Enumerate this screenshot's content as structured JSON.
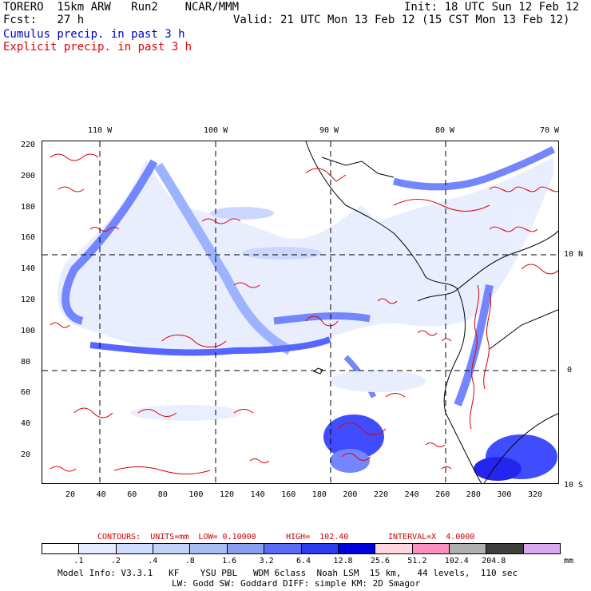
{
  "header": {
    "line1_left": "TORERO  15km ARW   Run2    NCAR/MMM",
    "line1_right": "Init: 18 UTC Sun 12 Feb 12",
    "line2_left": "Fcst:   27 h",
    "line2_right": "Valid: 21 UTC Mon 13 Feb 12 (15 CST Mon 13 Feb 12)",
    "legend_blue": "Cumulus precip. in past 3 h",
    "legend_red": "Explicit precip. in past 3 h"
  },
  "map": {
    "top_lon_labels": [
      "110 W",
      "100 W",
      "90 W",
      "80 W",
      "70 W"
    ],
    "right_lat_labels": [
      "10 N",
      "0",
      "10 S"
    ],
    "y_ticks": [
      "220",
      "200",
      "180",
      "160",
      "140",
      "120",
      "100",
      "80",
      "60",
      "40",
      "20"
    ],
    "x_ticks": [
      "20",
      "40",
      "60",
      "80",
      "100",
      "120",
      "140",
      "160",
      "180",
      "200",
      "220",
      "240",
      "260",
      "280",
      "300",
      "320"
    ],
    "contour_color": "#dd0000",
    "fill_colors": [
      "#e6ecff",
      "#c3d1ff",
      "#8ea6ff",
      "#5b72ff",
      "#1f2fff",
      "#0000ee"
    ]
  },
  "contours_line": {
    "units": "CONTOURS:  UNITS=mm  LOW= 0.10000",
    "high": "HIGH=  102.40",
    "interval": "INTERVAL=X  4.0000"
  },
  "colorbar": {
    "colors": [
      "#ffffff",
      "#e6ecff",
      "#d0dcff",
      "#c2d2f8",
      "#a9bdf5",
      "#8a9ef0",
      "#5a6bf5",
      "#2e3cf0",
      "#0000dd",
      "#ffd6e0",
      "#ff8fc0",
      "#b0b0b0",
      "#404040",
      "#d8a8f0"
    ],
    "labels": [
      ".1",
      ".2",
      ".4",
      ".8",
      "1.6",
      "3.2",
      "6.4",
      "12.8",
      "25.6",
      "51.2",
      "102.4",
      "204.8"
    ],
    "units": "mm"
  },
  "footer": {
    "line1": "Model Info: V3.3.1   KF    YSU PBL   WDM 6class  Noah LSM  15 km,   44 levels,  110 sec",
    "line2": "LW: Godd SW: Goddard DIFF: simple KM: 2D Smagor"
  }
}
